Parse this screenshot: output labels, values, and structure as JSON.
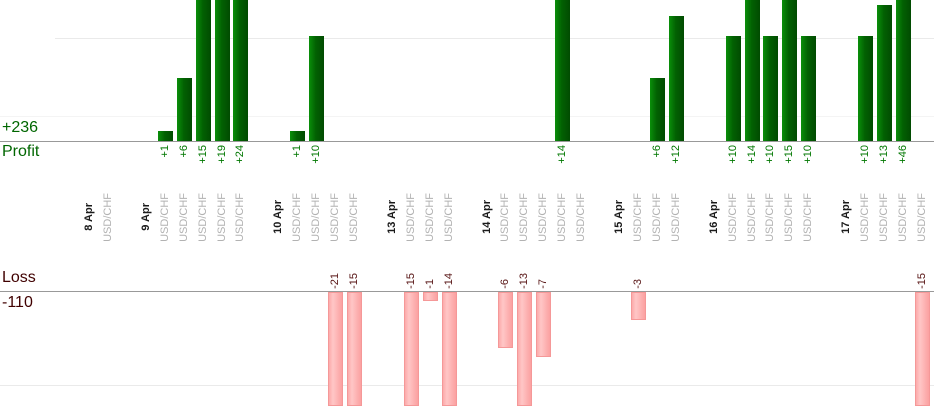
{
  "chart_data": {
    "type": "bar",
    "title": "",
    "xlabel": "",
    "ylabel": "",
    "legend": "none",
    "grid": "horizontal-faint",
    "panels": {
      "profit": {
        "label": "Profit",
        "total": "+236",
        "text_color": "#006600",
        "bar_color": "#026102"
      },
      "loss": {
        "label": "Loss",
        "total": "-110",
        "text_color": "#400000",
        "bar_color": "#ffb3b3"
      }
    },
    "groups": [
      {
        "date": "8 Apr",
        "trades": [
          {
            "instrument": "USD/CHF",
            "pl": null
          }
        ]
      },
      {
        "date": "9 Apr",
        "trades": [
          {
            "instrument": "USD/CHF",
            "pl": 1
          },
          {
            "instrument": "USD/CHF",
            "pl": 6
          },
          {
            "instrument": "USD/CHF",
            "pl": 15
          },
          {
            "instrument": "USD/CHF",
            "pl": 19
          },
          {
            "instrument": "USD/CHF",
            "pl": 24
          }
        ]
      },
      {
        "date": "10 Apr",
        "trades": [
          {
            "instrument": "USD/CHF",
            "pl": 1
          },
          {
            "instrument": "USD/CHF",
            "pl": 10
          },
          {
            "instrument": "USD/CHF",
            "pl": -21
          },
          {
            "instrument": "USD/CHF",
            "pl": -15
          }
        ]
      },
      {
        "date": "13 Apr",
        "trades": [
          {
            "instrument": "USD/CHF",
            "pl": -15
          },
          {
            "instrument": "USD/CHF",
            "pl": -1
          },
          {
            "instrument": "USD/CHF",
            "pl": -14
          }
        ]
      },
      {
        "date": "14 Apr",
        "trades": [
          {
            "instrument": "USD/CHF",
            "pl": -6
          },
          {
            "instrument": "USD/CHF",
            "pl": -13
          },
          {
            "instrument": "USD/CHF",
            "pl": -7
          },
          {
            "instrument": "USD/CHF",
            "pl": 14
          },
          {
            "instrument": "USD/CHF",
            "pl": null
          }
        ]
      },
      {
        "date": "15 Apr",
        "trades": [
          {
            "instrument": "USD/CHF",
            "pl": -3
          },
          {
            "instrument": "USD/CHF",
            "pl": 6
          },
          {
            "instrument": "USD/CHF",
            "pl": 12
          }
        ]
      },
      {
        "date": "16 Apr",
        "trades": [
          {
            "instrument": "USD/CHF",
            "pl": 10
          },
          {
            "instrument": "USD/CHF",
            "pl": 14
          },
          {
            "instrument": "USD/CHF",
            "pl": 10
          },
          {
            "instrument": "USD/CHF",
            "pl": 15
          },
          {
            "instrument": "USD/CHF",
            "pl": 10
          }
        ]
      },
      {
        "date": "17 Apr",
        "trades": [
          {
            "instrument": "USD/CHF",
            "pl": 10
          },
          {
            "instrument": "USD/CHF",
            "pl": 13
          },
          {
            "instrument": "USD/CHF",
            "pl": 46
          },
          {
            "instrument": "USD/CHF",
            "pl": -15
          }
        ]
      }
    ]
  }
}
